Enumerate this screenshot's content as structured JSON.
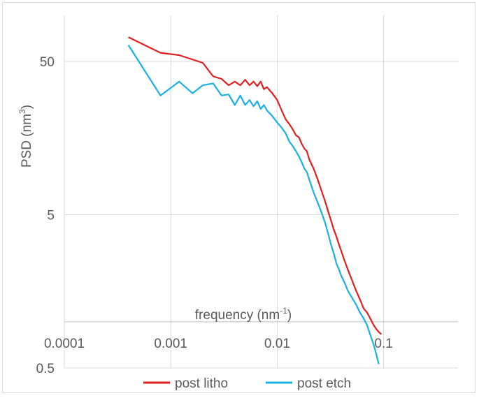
{
  "chart_data": {
    "type": "line",
    "xscale": "log",
    "yscale": "log",
    "xlabel": "frequency (nm-1)",
    "xlabel_parts": [
      "frequency (nm",
      "-1",
      ")"
    ],
    "ylabel": "PSD (nm3)",
    "ylabel_parts": [
      "PSD (nm",
      "3",
      ")"
    ],
    "xlim": [
      0.0001,
      0.5
    ],
    "ylim": [
      0.5,
      100
    ],
    "x_ticks": [
      0.0001,
      0.001,
      0.01,
      0.1
    ],
    "x_tick_labels": [
      "0.0001",
      "0.001",
      "0.01",
      "0.1"
    ],
    "y_ticks": [
      0.5,
      5,
      50
    ],
    "y_tick_labels": [
      "0.5",
      "5",
      "50"
    ],
    "grid": true,
    "legend_position": "bottom",
    "series": [
      {
        "name": "post litho",
        "color": "#e02020",
        "points": [
          [
            0.0004,
            72
          ],
          [
            0.0008,
            57
          ],
          [
            0.0012,
            55
          ],
          [
            0.002,
            49
          ],
          [
            0.0025,
            40
          ],
          [
            0.003,
            38.5
          ],
          [
            0.0035,
            35
          ],
          [
            0.004,
            37
          ],
          [
            0.0045,
            35
          ],
          [
            0.005,
            38
          ],
          [
            0.0055,
            35
          ],
          [
            0.006,
            37
          ],
          [
            0.0065,
            34.5
          ],
          [
            0.007,
            37
          ],
          [
            0.0075,
            33
          ],
          [
            0.008,
            34
          ],
          [
            0.009,
            31
          ],
          [
            0.01,
            28
          ],
          [
            0.011,
            24
          ],
          [
            0.012,
            21
          ],
          [
            0.013,
            19.5
          ],
          [
            0.014,
            18
          ],
          [
            0.015,
            16.5
          ],
          [
            0.016,
            16
          ],
          [
            0.017,
            14.5
          ],
          [
            0.018,
            13.5
          ],
          [
            0.019,
            13
          ],
          [
            0.02,
            11.5
          ],
          [
            0.022,
            10
          ],
          [
            0.024,
            8.5
          ],
          [
            0.026,
            7.2
          ],
          [
            0.028,
            6.2
          ],
          [
            0.03,
            5.3
          ],
          [
            0.032,
            4.6
          ],
          [
            0.034,
            4
          ],
          [
            0.036,
            3.6
          ],
          [
            0.038,
            3.2
          ],
          [
            0.04,
            2.9
          ],
          [
            0.043,
            2.5
          ],
          [
            0.046,
            2.2
          ],
          [
            0.05,
            1.9
          ],
          [
            0.055,
            1.6
          ],
          [
            0.06,
            1.4
          ],
          [
            0.065,
            1.22
          ],
          [
            0.07,
            1.15
          ],
          [
            0.075,
            1.05
          ],
          [
            0.08,
            0.96
          ],
          [
            0.085,
            0.9
          ],
          [
            0.09,
            0.86
          ],
          [
            0.095,
            0.83
          ]
        ]
      },
      {
        "name": "post etch",
        "color": "#1ab0e6",
        "points": [
          [
            0.0004,
            64
          ],
          [
            0.0008,
            30
          ],
          [
            0.0012,
            37
          ],
          [
            0.0016,
            31
          ],
          [
            0.002,
            35
          ],
          [
            0.0025,
            36
          ],
          [
            0.003,
            30
          ],
          [
            0.0035,
            30.5
          ],
          [
            0.004,
            26
          ],
          [
            0.0045,
            30
          ],
          [
            0.005,
            26
          ],
          [
            0.0055,
            28
          ],
          [
            0.006,
            25.5
          ],
          [
            0.0065,
            27.5
          ],
          [
            0.007,
            24.5
          ],
          [
            0.0075,
            26
          ],
          [
            0.008,
            24
          ],
          [
            0.009,
            22
          ],
          [
            0.01,
            20
          ],
          [
            0.011,
            18.5
          ],
          [
            0.012,
            17
          ],
          [
            0.013,
            15
          ],
          [
            0.014,
            14
          ],
          [
            0.015,
            13
          ],
          [
            0.016,
            12
          ],
          [
            0.017,
            11
          ],
          [
            0.018,
            10
          ],
          [
            0.019,
            9.5
          ],
          [
            0.02,
            8.5
          ],
          [
            0.022,
            7
          ],
          [
            0.024,
            6
          ],
          [
            0.026,
            5.2
          ],
          [
            0.028,
            4.5
          ],
          [
            0.03,
            3.8
          ],
          [
            0.032,
            3.2
          ],
          [
            0.034,
            2.8
          ],
          [
            0.036,
            2.4
          ],
          [
            0.038,
            2.2
          ],
          [
            0.04,
            2.0
          ],
          [
            0.043,
            1.8
          ],
          [
            0.046,
            1.6
          ],
          [
            0.05,
            1.45
          ],
          [
            0.055,
            1.3
          ],
          [
            0.06,
            1.15
          ],
          [
            0.065,
            1.05
          ],
          [
            0.07,
            0.95
          ],
          [
            0.075,
            0.82
          ],
          [
            0.08,
            0.72
          ],
          [
            0.085,
            0.62
          ],
          [
            0.09,
            0.53
          ]
        ]
      }
    ]
  }
}
